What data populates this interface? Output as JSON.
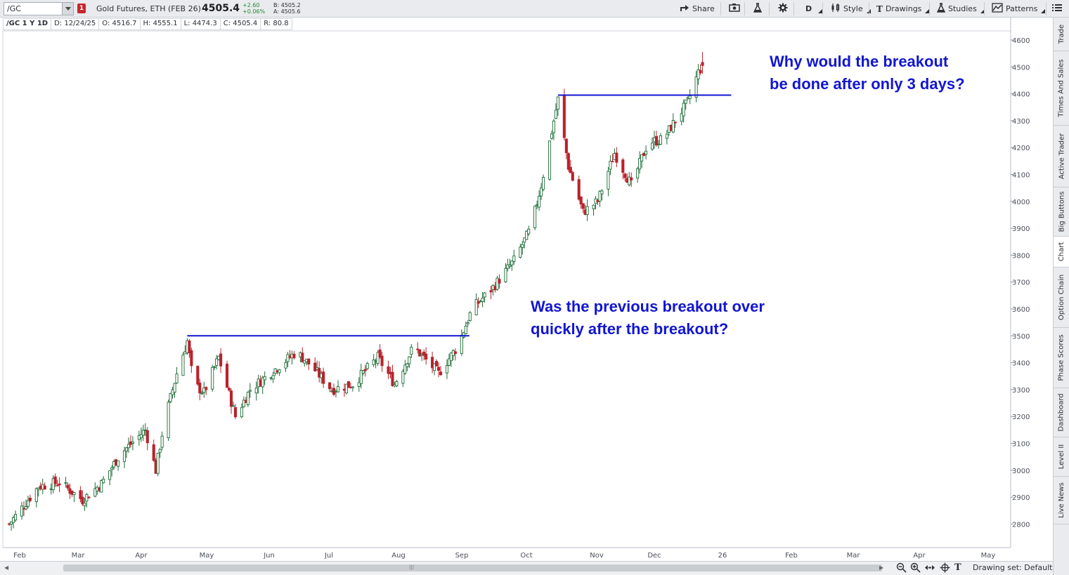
{
  "toolbar": {
    "symbol": "/GC",
    "link_group": "1",
    "instrument": "Gold Futures, ETH (FEB 26)",
    "last_price": "4505.4",
    "net_change": "+2.60",
    "net_change_pct": "+0.06%",
    "bid": "B: 4505.2",
    "ask": "A: 4505.6",
    "share_label": "Share",
    "aggregation": "D",
    "style_label": "Style",
    "drawings_label": "Drawings",
    "studies_label": "Studies",
    "patterns_label": "Patterns",
    "icons": [
      "share-icon",
      "screenshot-icon",
      "flask-icon",
      "gear-icon",
      "style-icon",
      "drawings-icon",
      "studies-icon",
      "patterns-icon",
      "menu-icon"
    ]
  },
  "info_row": {
    "chart_id": "/GC 1 Y 1D",
    "date": "D: 12/24/25",
    "open": "O: 4516.7",
    "high": "H: 4555.1",
    "low": "L: 4474.3",
    "close": "C: 4505.4",
    "range": "R: 80.8"
  },
  "annotations": {
    "top": "Why would the breakout\nbe done after only 3 days?",
    "middle": "Was the previous breakout over\nquickly after the breakout?"
  },
  "side_tabs": [
    "Trade",
    "Times And Sales",
    "Active Trader",
    "Big Buttons",
    "Chart",
    "Option Chain",
    "Phase Scores",
    "Dashboard",
    "Level II",
    "Live News"
  ],
  "active_side_tab": "Chart",
  "bottom_bar": {
    "drawing_set": "Drawing set: Default",
    "icons": [
      "zoom-out-icon",
      "zoom-in-icon",
      "pan-icon",
      "crosshair-icon",
      "text-tool-icon"
    ]
  },
  "chart_data": {
    "type": "candlestick",
    "y_ticks": [
      2800,
      2900,
      3000,
      3100,
      3200,
      3300,
      3400,
      3500,
      3600,
      3700,
      3800,
      3900,
      4000,
      4100,
      4200,
      4300,
      4400,
      4500,
      4600
    ],
    "x_ticks": [
      "Feb",
      "Mar",
      "Apr",
      "May",
      "Jun",
      "Jul",
      "Aug",
      "Sep",
      "Oct",
      "Nov",
      "Dec",
      "26",
      "Feb",
      "Mar",
      "Apr",
      "May"
    ],
    "up_color": "#1b6b35",
    "down_color": "#b8222c",
    "line_color": "#1216d1",
    "grid": false,
    "close_path": [
      [
        "Jan 27",
        2800
      ],
      [
        "Feb 3",
        2870
      ],
      [
        "Feb 10",
        2940
      ],
      [
        "Feb 20",
        2955
      ],
      [
        "Mar 3",
        2890
      ],
      [
        "Mar 12",
        2950
      ],
      [
        "Mar 21",
        3060
      ],
      [
        "Apr 2",
        3150
      ],
      [
        "Apr 7",
        3000
      ],
      [
        "Apr 11",
        3180
      ],
      [
        "Apr 17",
        3360
      ],
      [
        "Apr 22",
        3480
      ],
      [
        "Apr 25",
        3320
      ],
      [
        "Apr 30",
        3290
      ],
      [
        "May 7",
        3420
      ],
      [
        "May 15",
        3200
      ],
      [
        "May 22",
        3300
      ],
      [
        "Jun 2",
        3370
      ],
      [
        "Jun 13",
        3440
      ],
      [
        "Jun 20",
        3390
      ],
      [
        "Jun 30",
        3300
      ],
      [
        "Jul 10",
        3320
      ],
      [
        "Jul 22",
        3420
      ],
      [
        "Jul 30",
        3320
      ],
      [
        "Aug 8",
        3460
      ],
      [
        "Aug 20",
        3360
      ],
      [
        "Aug 29",
        3460
      ],
      [
        "Sep 5",
        3600
      ],
      [
        "Sep 15",
        3680
      ],
      [
        "Sep 25",
        3780
      ],
      [
        "Oct 3",
        3900
      ],
      [
        "Oct 8",
        4060
      ],
      [
        "Oct 16",
        4380
      ],
      [
        "Oct 21",
        4130
      ],
      [
        "Oct 28",
        3960
      ],
      [
        "Nov 4",
        4000
      ],
      [
        "Nov 12",
        4180
      ],
      [
        "Nov 20",
        4060
      ],
      [
        "Nov 28",
        4220
      ],
      [
        "Dec 5",
        4230
      ],
      [
        "Dec 11",
        4300
      ],
      [
        "Dec 17",
        4370
      ],
      [
        "Dec 22",
        4480
      ],
      [
        "Dec 24",
        4505.4
      ]
    ],
    "breakout_lines": [
      {
        "from": "Apr 22",
        "to": "Sep 1",
        "y": 3500
      },
      {
        "from": "Oct 16",
        "to": "Dec 31",
        "y": 4395
      }
    ]
  }
}
